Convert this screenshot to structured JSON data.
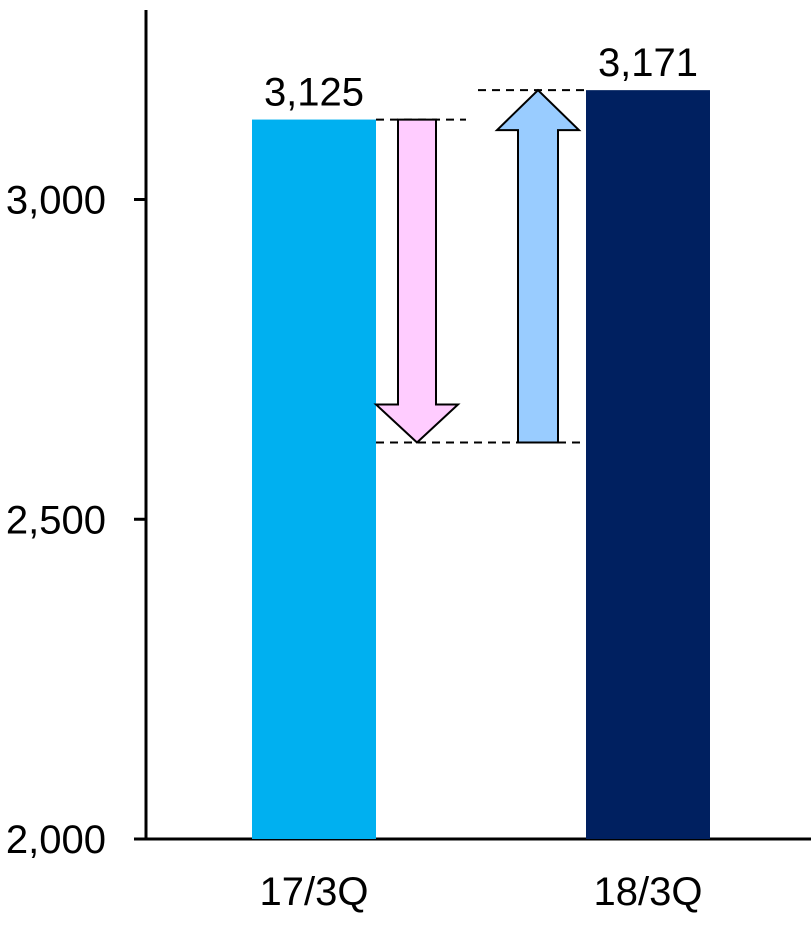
{
  "chart_data": {
    "type": "bar",
    "title": "",
    "xlabel": "",
    "ylabel": "",
    "categories": [
      "17/3Q",
      "18/3Q"
    ],
    "values": [
      3125,
      3171
    ],
    "value_labels": [
      "3,125",
      "3,171"
    ],
    "ylim": [
      2000,
      3200
    ],
    "yticks": [
      2000,
      2500,
      3000
    ],
    "ytick_labels": [
      "2,000",
      "2,500",
      "3,000"
    ],
    "grid": false,
    "legend": "none",
    "colors": [
      "#00b0f0",
      "#002060"
    ],
    "annotations": {
      "down_arrow": {
        "from": 3125,
        "to": 2620,
        "fill": "#ffccff"
      },
      "up_arrow": {
        "from": 2620,
        "to": 3171,
        "fill": "#99ccff"
      }
    }
  }
}
